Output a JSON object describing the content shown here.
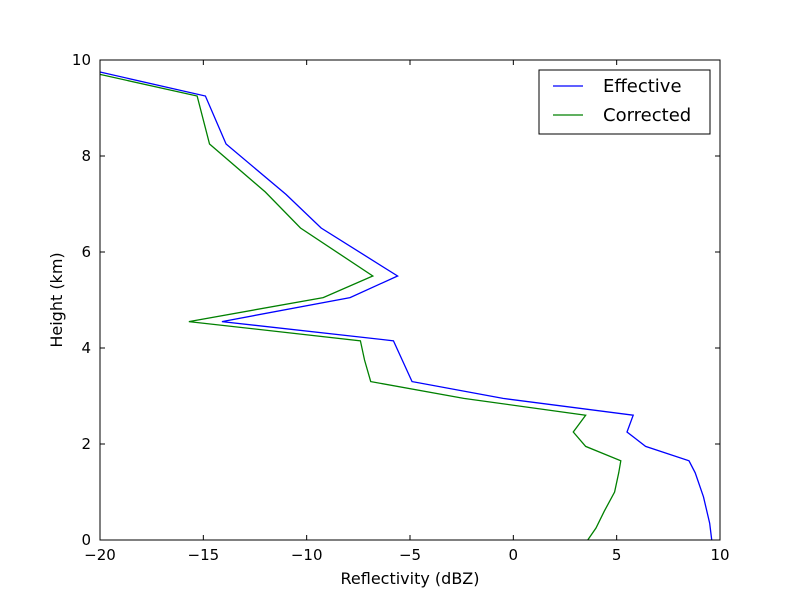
{
  "chart_data": {
    "type": "line",
    "title": "",
    "xlabel": "Reflectivity (dBZ)",
    "ylabel": "Height (km)",
    "xlim": [
      -20,
      10
    ],
    "ylim": [
      0,
      10
    ],
    "xticks": [
      -20,
      -15,
      -10,
      -5,
      0,
      5,
      10
    ],
    "yticks": [
      0,
      2,
      4,
      6,
      8,
      10
    ],
    "grid": false,
    "legend": "top-right",
    "series": [
      {
        "name": "Effective",
        "color": "#0000ff",
        "points": [
          [
            9.6,
            0.0
          ],
          [
            9.5,
            0.35
          ],
          [
            9.2,
            0.9
          ],
          [
            8.8,
            1.4
          ],
          [
            8.5,
            1.65
          ],
          [
            6.4,
            1.95
          ],
          [
            5.5,
            2.25
          ],
          [
            5.8,
            2.6
          ],
          [
            -0.5,
            2.95
          ],
          [
            -4.9,
            3.3
          ],
          [
            -5.8,
            4.15
          ],
          [
            -14.1,
            4.55
          ],
          [
            -7.9,
            5.05
          ],
          [
            -5.6,
            5.5
          ],
          [
            -9.3,
            6.5
          ],
          [
            -11.0,
            7.2
          ],
          [
            -13.9,
            8.25
          ],
          [
            -14.9,
            9.25
          ],
          [
            -20.0,
            9.75
          ]
        ]
      },
      {
        "name": "Corrected",
        "color": "#008000",
        "points": [
          [
            3.6,
            0.0
          ],
          [
            4.0,
            0.25
          ],
          [
            4.4,
            0.6
          ],
          [
            4.9,
            1.0
          ],
          [
            5.1,
            1.4
          ],
          [
            5.2,
            1.65
          ],
          [
            3.5,
            1.95
          ],
          [
            2.9,
            2.25
          ],
          [
            3.5,
            2.6
          ],
          [
            -2.4,
            2.95
          ],
          [
            -6.9,
            3.3
          ],
          [
            -7.2,
            3.75
          ],
          [
            -7.4,
            4.15
          ],
          [
            -15.7,
            4.55
          ],
          [
            -9.2,
            5.05
          ],
          [
            -6.8,
            5.5
          ],
          [
            -10.3,
            6.5
          ],
          [
            -12.0,
            7.25
          ],
          [
            -14.7,
            8.25
          ],
          [
            -15.3,
            9.25
          ],
          [
            -20.0,
            9.7
          ]
        ]
      }
    ]
  }
}
